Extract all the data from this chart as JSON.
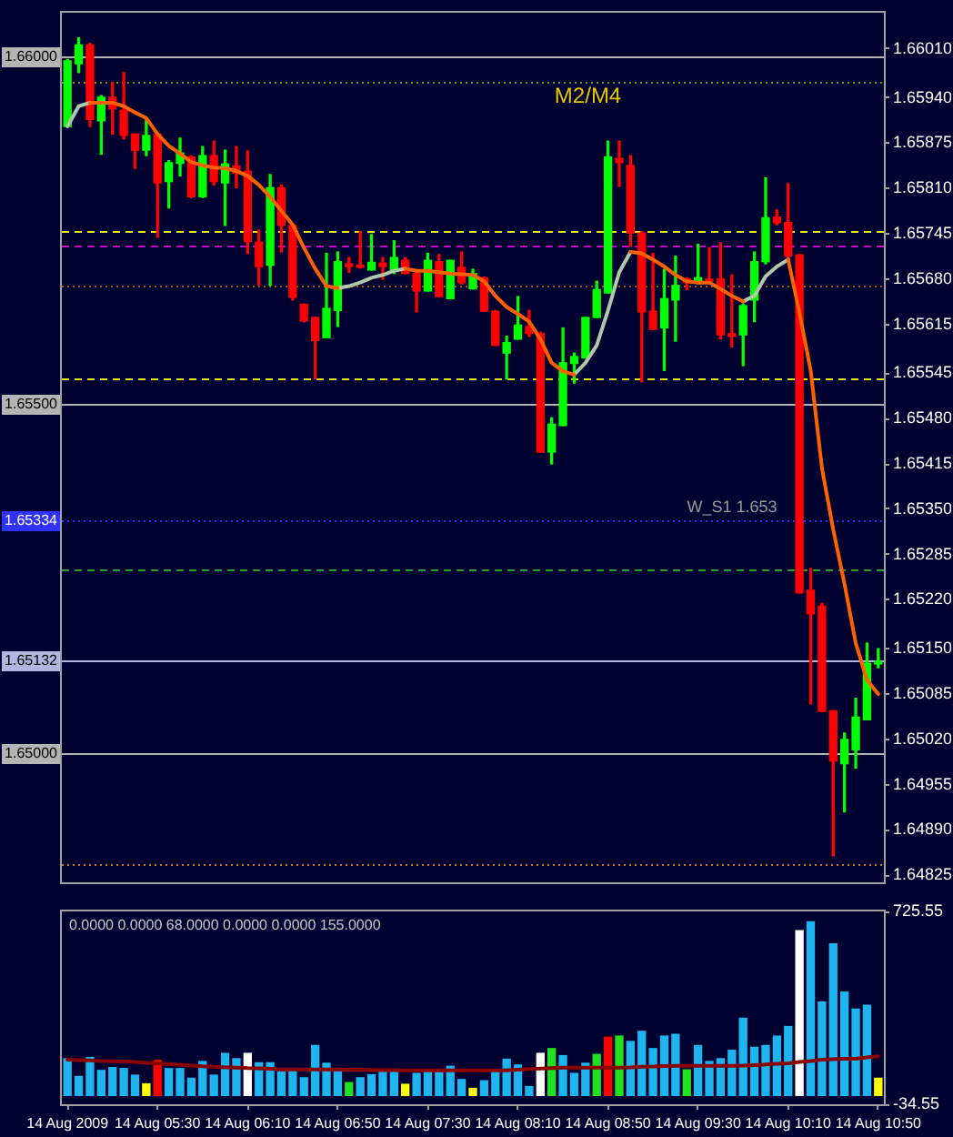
{
  "chart_data": [
    {
      "type": "candlestick",
      "categories": [
        null,
        null,
        null,
        null,
        null,
        null,
        null,
        null,
        null,
        null,
        null,
        null,
        null,
        null,
        null,
        null,
        null,
        null,
        null,
        null,
        null,
        null,
        null,
        null,
        null,
        null,
        null,
        null,
        null,
        null,
        null,
        null,
        null,
        null,
        null,
        null,
        null,
        null,
        null,
        null,
        null,
        null,
        null,
        null,
        null,
        null,
        null,
        null,
        null,
        null,
        null,
        null,
        null,
        null,
        null,
        null,
        null,
        null,
        null,
        null,
        null,
        null,
        null,
        null,
        null,
        null,
        null,
        null,
        null,
        null,
        null,
        null,
        null
      ],
      "ohlc": [
        [
          1.65899,
          1.65995,
          1.65899,
          1.65993
        ],
        [
          1.65989,
          1.66026,
          1.65976,
          1.66016
        ],
        [
          1.66016,
          1.66018,
          1.65899,
          1.65909
        ],
        [
          1.65907,
          1.65943,
          1.65859,
          1.65941
        ],
        [
          1.65941,
          1.65962,
          1.65888,
          1.65924
        ],
        [
          1.65922,
          1.65976,
          1.65881,
          1.65886
        ],
        [
          1.65888,
          1.65888,
          1.65839,
          1.65865
        ],
        [
          1.65865,
          1.65909,
          1.65857,
          1.65886
        ],
        [
          1.65888,
          1.65888,
          1.6574,
          1.65818
        ],
        [
          1.6582,
          1.6585,
          1.65782,
          1.65847
        ],
        [
          1.65846,
          1.65882,
          1.65828,
          1.65861
        ],
        [
          1.65855,
          1.65857,
          1.65797,
          1.65798
        ],
        [
          1.65798,
          1.6587,
          1.65797,
          1.65857
        ],
        [
          1.65857,
          1.65878,
          1.65815,
          1.6582
        ],
        [
          1.65818,
          1.65865,
          1.65757,
          1.65845
        ],
        [
          1.65842,
          1.6587,
          1.65811,
          1.65832
        ],
        [
          1.65835,
          1.65864,
          1.65717,
          1.65734
        ],
        [
          1.65733,
          1.6575,
          1.65671,
          1.65698
        ],
        [
          1.657,
          1.6583,
          1.65671,
          1.65811
        ],
        [
          1.65811,
          1.65815,
          1.65719,
          1.65757
        ],
        [
          1.65757,
          1.65758,
          1.6565,
          1.65654
        ],
        [
          1.65644,
          1.65644,
          1.65619,
          1.6562
        ],
        [
          1.65625,
          1.65625,
          1.65537,
          1.65592
        ],
        [
          1.65596,
          1.65717,
          1.65596,
          1.65638
        ],
        [
          1.65635,
          1.65719,
          1.65612,
          1.65705
        ],
        [
          1.65702,
          1.65711,
          1.6569,
          1.65698
        ],
        [
          1.657,
          1.65748,
          1.65696,
          1.65697
        ],
        [
          1.65693,
          1.65744,
          1.65693,
          1.65704
        ],
        [
          1.65703,
          1.65711,
          1.6568,
          1.65698
        ],
        [
          1.65692,
          1.65735,
          1.65688,
          1.65711
        ],
        [
          1.65707,
          1.65711,
          1.65688,
          1.65688
        ],
        [
          1.65688,
          1.65692,
          1.65633,
          1.65663
        ],
        [
          1.65663,
          1.65717,
          1.65663,
          1.65707
        ],
        [
          1.65705,
          1.65715,
          1.65655,
          1.65655
        ],
        [
          1.65652,
          1.65707,
          1.65652,
          1.65707
        ],
        [
          1.65697,
          1.65719,
          1.65673,
          1.65675
        ],
        [
          1.65666,
          1.65694,
          1.65666,
          1.65688
        ],
        [
          1.65682,
          1.65683,
          1.65634,
          1.65634
        ],
        [
          1.65634,
          1.65635,
          1.65585,
          1.65585
        ],
        [
          1.65574,
          1.65598,
          1.65537,
          1.65589
        ],
        [
          1.65594,
          1.65655,
          1.65594,
          1.65614
        ],
        [
          1.65612,
          1.65635,
          1.65598,
          1.65602
        ],
        [
          1.65602,
          1.65604,
          1.65432,
          1.65432
        ],
        [
          1.65432,
          1.65481,
          1.65415,
          1.65472
        ],
        [
          1.6547,
          1.6561,
          1.6547,
          1.6556
        ],
        [
          1.65559,
          1.65574,
          1.65531,
          1.65569
        ],
        [
          1.65567,
          1.65625,
          1.65567,
          1.65625
        ],
        [
          1.65625,
          1.65677,
          1.65625,
          1.65665
        ],
        [
          1.6566,
          1.65878,
          1.6566,
          1.65855
        ],
        [
          1.65853,
          1.65878,
          1.65813,
          1.65847
        ],
        [
          1.65843,
          1.65857,
          1.65727,
          1.65746
        ],
        [
          1.65746,
          1.65748,
          1.65533,
          1.65633
        ],
        [
          1.65634,
          1.65717,
          1.65608,
          1.65608
        ],
        [
          1.6561,
          1.65694,
          1.65549,
          1.65652
        ],
        [
          1.6565,
          1.65713,
          1.65591,
          1.65671
        ],
        [
          1.6568,
          1.65682,
          1.65665,
          1.65675
        ],
        [
          1.65677,
          1.6573,
          1.65673,
          1.65682
        ],
        [
          1.6568,
          1.65725,
          1.65673,
          1.65677
        ],
        [
          1.6568,
          1.65732,
          1.65594,
          1.656
        ],
        [
          1.65602,
          1.65686,
          1.65583,
          1.65598
        ],
        [
          1.656,
          1.65644,
          1.65556,
          1.65642
        ],
        [
          1.6565,
          1.65719,
          1.65619,
          1.65705
        ],
        [
          1.65705,
          1.65825,
          1.65702,
          1.65768
        ],
        [
          1.65769,
          1.65779,
          1.65758,
          1.65761
        ],
        [
          1.65761,
          1.65817,
          1.65711,
          1.65713
        ],
        [
          1.65715,
          1.65715,
          1.6523,
          1.6523
        ],
        [
          1.65234,
          1.65265,
          1.65071,
          1.652
        ],
        [
          1.65211,
          1.65215,
          1.6506,
          1.6506
        ],
        [
          1.65061,
          1.65061,
          1.64853,
          1.64989
        ],
        [
          1.64985,
          1.65029,
          1.64916,
          1.6502
        ],
        [
          1.65005,
          1.65079,
          1.64979,
          1.65052
        ],
        [
          1.65048,
          1.65158,
          1.65048,
          1.65129
        ],
        [
          1.65128,
          1.6515,
          1.65123,
          1.65132
        ]
      ],
      "colors": [
        "#00ff00",
        "#00ff00",
        "#ff0000",
        "#00ff00",
        "#ff0000",
        "#ff0000",
        "#ff0000",
        "#00ff00",
        "#ff0000",
        "#00ff00",
        "#00ff00",
        "#ff0000",
        "#00ff00",
        "#ff0000",
        "#00ff00",
        "#ff0000",
        "#ff0000",
        "#ff0000",
        "#00ff00",
        "#ff0000",
        "#ff0000",
        "#ff0000",
        "#ff0000",
        "#00ff00",
        "#00ff00",
        "#ff0000",
        "#ff0000",
        "#00ff00",
        "#ff0000",
        "#00ff00",
        "#ff0000",
        "#ff0000",
        "#00ff00",
        "#ff0000",
        "#00ff00",
        "#ff0000",
        "#00ff00",
        "#ff0000",
        "#ff0000",
        "#00ff00",
        "#00ff00",
        "#ff0000",
        "#ff0000",
        "#00ff00",
        "#00ff00",
        "#00ff00",
        "#00ff00",
        "#00ff00",
        "#00ff00",
        "#ff0000",
        "#ff0000",
        "#ff0000",
        "#ff0000",
        "#00ff00",
        "#00ff00",
        "#ff0000",
        "#00ff00",
        "#ff0000",
        "#ff0000",
        "#ff0000",
        "#00ff00",
        "#00ff00",
        "#00ff00",
        "#ff0000",
        "#ff0000",
        "#ff0000",
        "#ff0000",
        "#ff0000",
        "#ff0000",
        "#00ff00",
        "#00ff00",
        "#00ff00",
        "#00ff00"
      ],
      "series": [
        {
          "type": "line",
          "color": "#ff6000",
          "values": [
            null,
            null,
            1.65933,
            1.65933,
            1.65933,
            1.65928,
            1.65919,
            1.65911,
            1.65888,
            1.65871,
            1.6586,
            1.65848,
            1.65843,
            1.6584,
            1.65839,
            1.65835,
            1.65828,
            1.65815,
            1.65798,
            1.65778,
            1.65758,
            1.65725,
            1.65695,
            1.6567,
            1.65667,
            null,
            null,
            null,
            null,
            null,
            1.65695,
            1.65692,
            1.65692,
            1.6569,
            1.65688,
            1.65687,
            1.65686,
            1.65677,
            1.65656,
            1.6564,
            1.6563,
            1.65619,
            1.65594,
            1.6556,
            1.65548,
            1.65543,
            null,
            null,
            null,
            null,
            1.65719,
            1.65717,
            1.65708,
            1.65698,
            1.65686,
            1.65677,
            1.65675,
            1.65675,
            1.65666,
            1.65656,
            1.65648,
            null,
            null,
            null,
            1.65708,
            1.65632,
            1.65549,
            1.65409,
            1.65321,
            1.65243,
            1.65158,
            1.65105,
            1.65085
          ]
        },
        {
          "type": "line",
          "color": "#b0c8a8",
          "values": [
            1.65899,
            1.65928,
            1.65933,
            null,
            null,
            null,
            null,
            null,
            null,
            null,
            null,
            null,
            null,
            null,
            null,
            null,
            null,
            null,
            null,
            null,
            null,
            null,
            null,
            null,
            1.65667,
            1.6567,
            1.65675,
            1.65682,
            1.65686,
            1.65692,
            1.65695,
            null,
            null,
            null,
            null,
            null,
            null,
            null,
            null,
            null,
            null,
            null,
            null,
            null,
            null,
            1.65543,
            1.6556,
            1.65585,
            1.65635,
            1.6569,
            1.65719,
            null,
            null,
            null,
            null,
            null,
            null,
            null,
            null,
            null,
            1.65648,
            1.65656,
            1.65684,
            1.65698,
            1.65708,
            null,
            null,
            null,
            null,
            null,
            null,
            null,
            null
          ]
        }
      ],
      "ylim": [
        1.64816,
        1.66061
      ],
      "yticks": [
        1.64825,
        {
          "value": 1.6489,
          "label": "1.64890"
        },
        1.64955,
        {
          "value": 1.6502,
          "label": "1.65020"
        },
        1.65085,
        {
          "value": 1.6515,
          "label": "1.65150"
        },
        {
          "value": 1.6522,
          "label": "1.65220"
        },
        1.65285,
        {
          "value": 1.6535,
          "label": "1.65350"
        },
        1.65415,
        {
          "value": 1.6548,
          "label": "1.65480"
        },
        1.65545,
        1.65615,
        {
          "value": 1.6568,
          "label": "1.65680"
        },
        1.65745,
        {
          "value": 1.6581,
          "label": "1.65810"
        },
        1.65875,
        {
          "value": 1.6594,
          "label": "1.65940"
        },
        {
          "value": 1.6601,
          "label": "1.66010"
        }
      ],
      "tick_labels": "y",
      "ref_lines": [
        {
          "axis": "y",
          "value": 1.66,
          "label": "1.66000",
          "color": "#b4b4b4"
        },
        {
          "axis": "y",
          "value": 1.65963,
          "color": "#8c8c14",
          "line_style": "dotted"
        },
        {
          "axis": "y",
          "value": 1.65748,
          "color": "#e6e600",
          "line_style": "dashed"
        },
        {
          "axis": "y",
          "value": 1.65727,
          "color": "#c800c8",
          "line_style": "dashed"
        },
        {
          "axis": "y",
          "value": 1.65672,
          "color": "#a05a14",
          "line_style": "dotted"
        },
        {
          "axis": "y",
          "value": 1.65537,
          "color": "#e6e600",
          "line_style": "dashed"
        },
        {
          "axis": "y",
          "value": 1.655,
          "label": "1.65500",
          "color": "#b4b4b4"
        },
        {
          "axis": "y",
          "value": 1.65334,
          "label": "1.65334",
          "color": "#3232ff",
          "line_style": "dotted"
        },
        {
          "axis": "y",
          "value": 1.65263,
          "color": "#28a028",
          "line_style": "dashed"
        },
        {
          "axis": "y",
          "value": 1.65132,
          "label": "1.65132",
          "color": "#b4b4e0"
        },
        {
          "axis": "y",
          "value": 1.65,
          "label": "1.65000",
          "color": "#b4b4b4"
        },
        {
          "axis": "y",
          "value": 1.64841,
          "color": "#c87814",
          "line_style": "dotted"
        }
      ],
      "annotations": [
        "M2/M4",
        {
          "text": "W_S1 1.653",
          "y": 1.65334
        }
      ]
    },
    {
      "type": "bar",
      "title": "0.0000 0.0000 68.0000 0.0000 0.0000 155.0000",
      "categories": [
        "14 Aug 2009",
        null,
        null,
        null,
        null,
        null,
        null,
        null,
        "14 Aug 05:30",
        null,
        null,
        null,
        null,
        null,
        null,
        null,
        "14 Aug 06:10",
        null,
        null,
        null,
        null,
        null,
        null,
        null,
        "14 Aug 06:50",
        null,
        null,
        null,
        null,
        null,
        null,
        null,
        "14 Aug 07:30",
        null,
        null,
        null,
        null,
        null,
        null,
        null,
        "14 Aug 08:10",
        null,
        null,
        null,
        null,
        null,
        null,
        null,
        "14 Aug 08:50",
        null,
        null,
        null,
        null,
        null,
        null,
        null,
        "14 Aug 09:30",
        null,
        null,
        null,
        null,
        null,
        null,
        null,
        "14 Aug 10:10",
        null,
        null,
        null,
        null,
        null,
        null,
        null,
        "14 Aug 10:50"
      ],
      "series": [
        {
          "type": "bar",
          "values": [
            145,
            75,
            150,
            99,
            110,
            106,
            80,
            46,
            138,
            106,
            106,
            68,
            134,
            80,
            166,
            145,
            166,
            129,
            129,
            94,
            103,
            70,
            197,
            127,
            99,
            51,
            70,
            82,
            94,
            94,
            44,
            87,
            94,
            92,
            115,
            63,
            28,
            58,
            94,
            143,
            120,
            35,
            166,
            185,
            157,
            87,
            127,
            162,
            230,
            234,
            213,
            253,
            185,
            234,
            241,
            101,
            197,
            134,
            145,
            178,
            305,
            190,
            197,
            234,
            272,
            650,
            685,
            368,
            598,
            408,
            340,
            356,
            68
          ],
          "colors": [
            "#1eb4ee",
            "#1eb4ee",
            "#1eb4ee",
            "#1eb4ee",
            "#1eb4ee",
            "#1eb4ee",
            "#1eb4ee",
            "#ffff00",
            "#ff0000",
            "#1eb4ee",
            "#1eb4ee",
            "#1eb4ee",
            "#1eb4ee",
            "#1eb4ee",
            "#1eb4ee",
            "#1eb4ee",
            "#ffffff",
            "#1eb4ee",
            "#1eb4ee",
            "#1eb4ee",
            "#1eb4ee",
            "#1eb4ee",
            "#1eb4ee",
            "#1eb4ee",
            "#1eb4ee",
            "#20e020",
            "#1eb4ee",
            "#1eb4ee",
            "#1eb4ee",
            "#1eb4ee",
            "#ffff00",
            "#1eb4ee",
            "#1eb4ee",
            "#1eb4ee",
            "#1eb4ee",
            "#1eb4ee",
            "#ffff00",
            "#1eb4ee",
            "#1eb4ee",
            "#1eb4ee",
            "#1eb4ee",
            "#1eb4ee",
            "#ffffff",
            "#20e020",
            "#1eb4ee",
            "#1eb4ee",
            "#1eb4ee",
            "#20e020",
            "#ff0000",
            "#20e020",
            "#1eb4ee",
            "#1eb4ee",
            "#1eb4ee",
            "#1eb4ee",
            "#1eb4ee",
            "#20e020",
            "#1eb4ee",
            "#1eb4ee",
            "#1eb4ee",
            "#1eb4ee",
            "#1eb4ee",
            "#1eb4ee",
            "#1eb4ee",
            "#1eb4ee",
            "#1eb4ee",
            "#ffffff",
            "#1eb4ee",
            "#1eb4ee",
            "#1eb4ee",
            "#1eb4ee",
            "#1eb4ee",
            "#1eb4ee",
            "#ffff00"
          ]
        },
        {
          "type": "line",
          "color": "#8b0000",
          "values": [
            141,
            139,
            138,
            136,
            135,
            134,
            132,
            129,
            127,
            124,
            121,
            118,
            115,
            113,
            111,
            110,
            108,
            107,
            105,
            103,
            103,
            103,
            103,
            103,
            103,
            102,
            102,
            101,
            100,
            100,
            99,
            99,
            99,
            99,
            99,
            99,
            99,
            99,
            99,
            99,
            102,
            104,
            106,
            108,
            110,
            110,
            110,
            110,
            110,
            110,
            111,
            113,
            114,
            116,
            117,
            117,
            117,
            117,
            117,
            117,
            118,
            120,
            122,
            125,
            127,
            132,
            136,
            141,
            143,
            145,
            145,
            150,
            155
          ]
        }
      ],
      "ylim": [
        -34.55,
        725.55
      ],
      "yticks": [
        -34.55,
        725.55
      ]
    }
  ]
}
